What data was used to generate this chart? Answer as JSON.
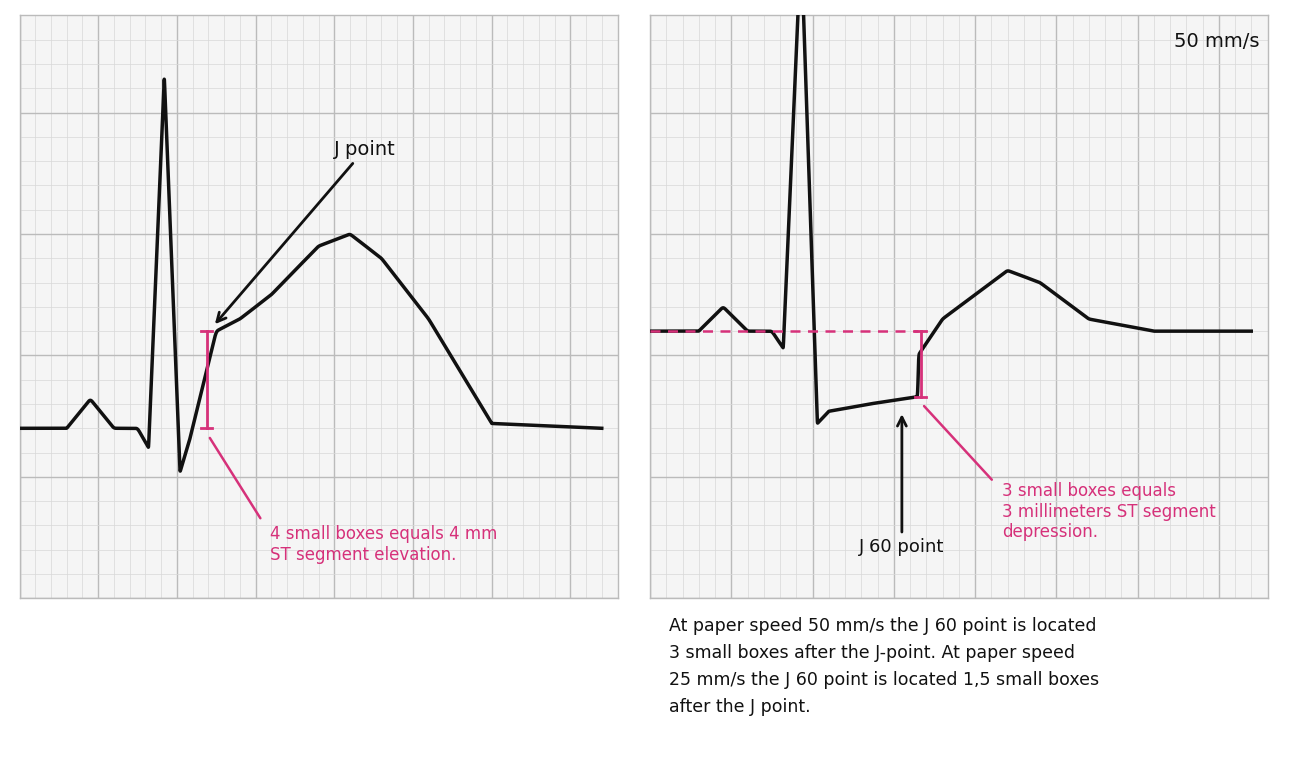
{
  "bg_color": "#f5f5f5",
  "ecg_color": "#111111",
  "pink_color": "#d6317a",
  "arrow_color": "#111111",
  "text_color": "#111111",
  "speed_text": "50 mm/s",
  "left_annotation1": "J point",
  "left_annotation2": "4 small boxes equals 4 mm\nST segment elevation.",
  "right_annotation1": "3 small boxes equals\n3 millimeters ST segment\ndepression.",
  "right_annotation2": "J 60 point",
  "bottom_text": "At paper speed 50 mm/s the J 60 point is located\n3 small boxes after the J-point. At paper speed\n25 mm/s the J 60 point is located 1,5 small boxes\nafter the J point.",
  "grid_minor_color": "#d8d8d8",
  "grid_major_color": "#bbbbbb"
}
